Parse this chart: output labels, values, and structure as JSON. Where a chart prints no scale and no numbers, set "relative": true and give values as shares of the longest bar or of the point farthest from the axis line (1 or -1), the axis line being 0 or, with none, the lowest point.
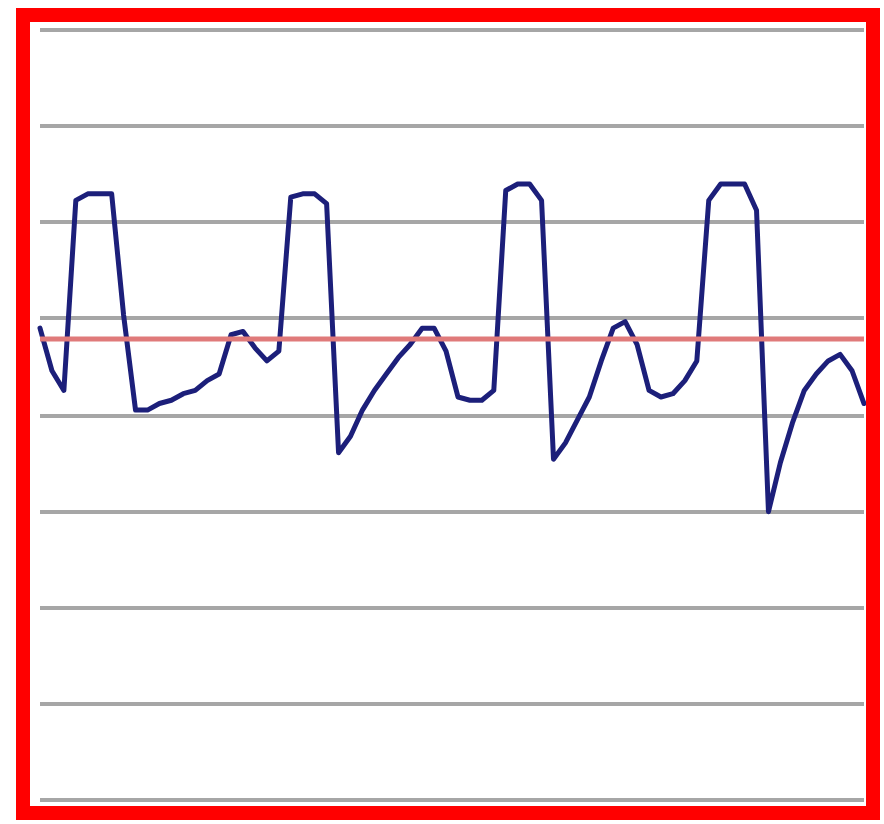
{
  "chart_data": {
    "type": "line",
    "relative": true,
    "grid": "y",
    "marker": "none",
    "line_style": "solid",
    "categories": [
      null,
      null,
      null,
      null,
      null,
      null,
      null,
      null,
      null,
      null,
      null,
      null,
      null,
      null,
      null,
      null,
      null,
      null,
      null,
      null,
      null,
      null,
      null,
      null,
      null,
      null,
      null,
      null,
      null,
      null,
      null,
      null,
      null,
      null,
      null,
      null,
      null,
      null,
      null,
      null,
      null,
      null,
      null,
      null,
      null,
      null,
      null,
      null,
      null,
      null,
      null,
      null,
      null,
      null,
      null,
      null,
      null,
      null,
      null,
      null,
      null,
      null,
      null,
      null,
      null,
      null,
      null,
      null,
      null,
      null
    ],
    "series": [
      {
        "color": "#1c1f7a",
        "values": [
          0.56,
          0.43,
          0.37,
          0.95,
          0.97,
          0.97,
          0.97,
          0.6,
          0.31,
          0.31,
          0.33,
          0.34,
          0.36,
          0.37,
          0.4,
          0.42,
          0.54,
          0.55,
          0.5,
          0.46,
          0.49,
          0.96,
          0.97,
          0.97,
          0.94,
          0.18,
          0.23,
          0.31,
          0.37,
          0.42,
          0.47,
          0.51,
          0.56,
          0.56,
          0.49,
          0.35,
          0.34,
          0.34,
          0.37,
          0.98,
          1,
          1,
          0.95,
          0.16,
          0.21,
          0.28,
          0.35,
          0.46,
          0.56,
          0.58,
          0.51,
          0.37,
          0.35,
          0.36,
          0.4,
          0.46,
          0.95,
          1,
          1,
          1,
          0.92,
          0,
          0.15,
          0.27,
          0.37,
          0.42,
          0.46,
          0.48,
          0.43,
          0.33
        ]
      }
    ],
    "ref_lines": [
      {
        "axis": "y",
        "value": 0.53,
        "color": "#e07a7a"
      }
    ]
  }
}
